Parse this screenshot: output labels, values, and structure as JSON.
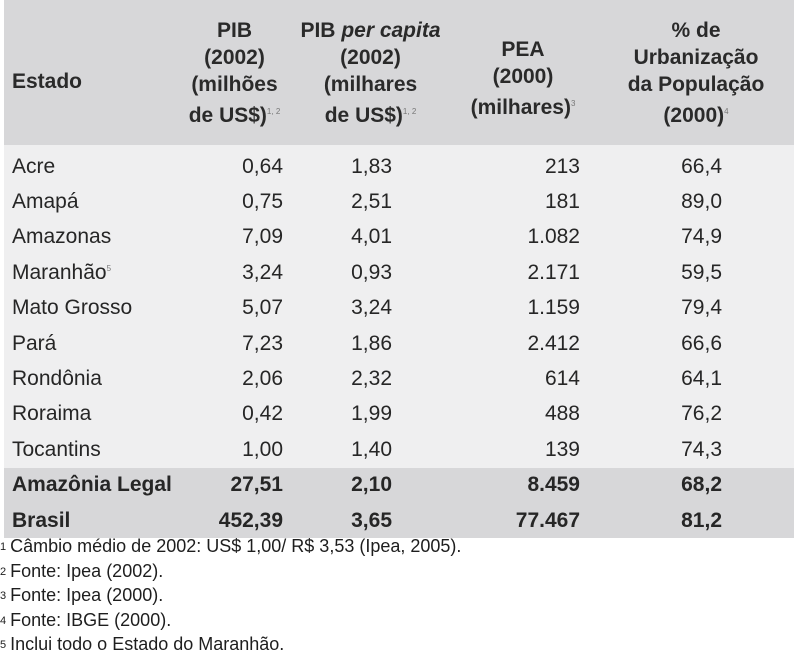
{
  "table": {
    "headers": {
      "estado": "Estado",
      "pib": [
        "PIB",
        "(2002)",
        "(milhões",
        "de US$)"
      ],
      "pib_sup": "1, 2",
      "pc_prefix": "PIB ",
      "pc_italic": "per capita",
      "pc": [
        "(2002)",
        "(milhares",
        "de US$)"
      ],
      "pc_sup": "1, 2",
      "pea": [
        "PEA",
        "(2000)",
        "(milhares)"
      ],
      "pea_sup": "3",
      "urb": [
        "% de",
        "Urbanização",
        "da População",
        "(2000)"
      ],
      "urb_sup": "4"
    },
    "rows": [
      {
        "estado": "Acre",
        "pib": "0,64",
        "pc": "1,83",
        "pea": "213",
        "urb": "66,4"
      },
      {
        "estado": "Amapá",
        "pib": "0,75",
        "pc": "2,51",
        "pea": "181",
        "urb": "89,0"
      },
      {
        "estado": "Amazonas",
        "pib": "7,09",
        "pc": "4,01",
        "pea": "1.082",
        "urb": "74,9"
      },
      {
        "estado": "Maranhão",
        "sup": "5",
        "pib": "3,24",
        "pc": "0,93",
        "pea": "2.171",
        "urb": "59,5"
      },
      {
        "estado": "Mato Grosso",
        "pib": "5,07",
        "pc": "3,24",
        "pea": "1.159",
        "urb": "79,4"
      },
      {
        "estado": "Pará",
        "pib": "7,23",
        "pc": "1,86",
        "pea": "2.412",
        "urb": "66,6"
      },
      {
        "estado": "Rondônia",
        "pib": "2,06",
        "pc": "2,32",
        "pea": "614",
        "urb": "64,1"
      },
      {
        "estado": "Roraima",
        "pib": "0,42",
        "pc": "1,99",
        "pea": "488",
        "urb": "76,2"
      },
      {
        "estado": "Tocantins",
        "pib": "1,00",
        "pc": "1,40",
        "pea": "139",
        "urb": "74,3"
      }
    ],
    "totals": [
      {
        "estado": "Amazônia Legal",
        "pib": "27,51",
        "pc": "2,10",
        "pea": "8.459",
        "urb": "68,2"
      },
      {
        "estado": "Brasil",
        "pib": "452,39",
        "pc": "3,65",
        "pea": "77.467",
        "urb": "81,2"
      }
    ]
  },
  "notes": [
    {
      "n": "1",
      "text": "Câmbio médio de 2002: US$ 1,00/ R$ 3,53 (Ipea, 2005)."
    },
    {
      "n": "2",
      "text": "Fonte: Ipea (2002)."
    },
    {
      "n": "3",
      "text": "Fonte: Ipea (2000)."
    },
    {
      "n": "4",
      "text": "Fonte: IBGE (2000)."
    },
    {
      "n": "5",
      "text": "Inclui todo o Estado do Maranhão."
    }
  ]
}
